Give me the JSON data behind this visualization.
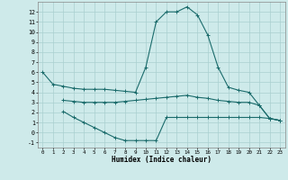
{
  "xlabel": "Humidex (Indice chaleur)",
  "bg_color": "#ceeaea",
  "grid_color": "#aacfcf",
  "line_color": "#1a6b6b",
  "xlim": [
    -0.5,
    23.5
  ],
  "ylim": [
    -1.5,
    13.0
  ],
  "xticks": [
    0,
    1,
    2,
    3,
    4,
    5,
    6,
    7,
    8,
    9,
    10,
    11,
    12,
    13,
    14,
    15,
    16,
    17,
    18,
    19,
    20,
    21,
    22,
    23
  ],
  "yticks": [
    -1,
    0,
    1,
    2,
    3,
    4,
    5,
    6,
    7,
    8,
    9,
    10,
    11,
    12
  ],
  "line1_x": [
    0,
    1,
    2,
    3,
    4,
    5,
    6,
    7,
    8,
    9,
    10,
    11,
    12,
    13,
    14,
    15,
    16,
    17,
    18,
    19,
    20,
    21,
    22,
    23
  ],
  "line1_y": [
    6.0,
    4.8,
    4.6,
    4.4,
    4.3,
    4.3,
    4.3,
    4.2,
    4.1,
    4.0,
    6.5,
    11.0,
    12.0,
    12.0,
    12.5,
    11.7,
    9.7,
    6.5,
    4.5,
    4.2,
    4.0,
    2.7,
    1.4,
    1.2
  ],
  "line2_x": [
    2,
    3,
    4,
    5,
    6,
    7,
    8,
    9,
    10,
    11,
    12,
    13,
    14,
    15,
    16,
    17,
    18,
    19,
    20,
    21,
    22,
    23
  ],
  "line2_y": [
    3.2,
    3.1,
    3.0,
    3.0,
    3.0,
    3.0,
    3.1,
    3.2,
    3.3,
    3.4,
    3.5,
    3.6,
    3.7,
    3.5,
    3.4,
    3.2,
    3.1,
    3.0,
    3.0,
    2.7,
    1.4,
    1.2
  ],
  "line3_x": [
    2,
    3,
    4,
    5,
    6,
    7,
    8,
    9,
    10,
    11,
    12,
    13,
    14,
    15,
    16,
    17,
    18,
    19,
    20,
    21,
    22,
    23
  ],
  "line3_y": [
    2.1,
    1.5,
    1.0,
    0.5,
    0.0,
    -0.5,
    -0.8,
    -0.8,
    -0.8,
    -0.8,
    1.5,
    1.5,
    1.5,
    1.5,
    1.5,
    1.5,
    1.5,
    1.5,
    1.5,
    1.5,
    1.4,
    1.2
  ]
}
